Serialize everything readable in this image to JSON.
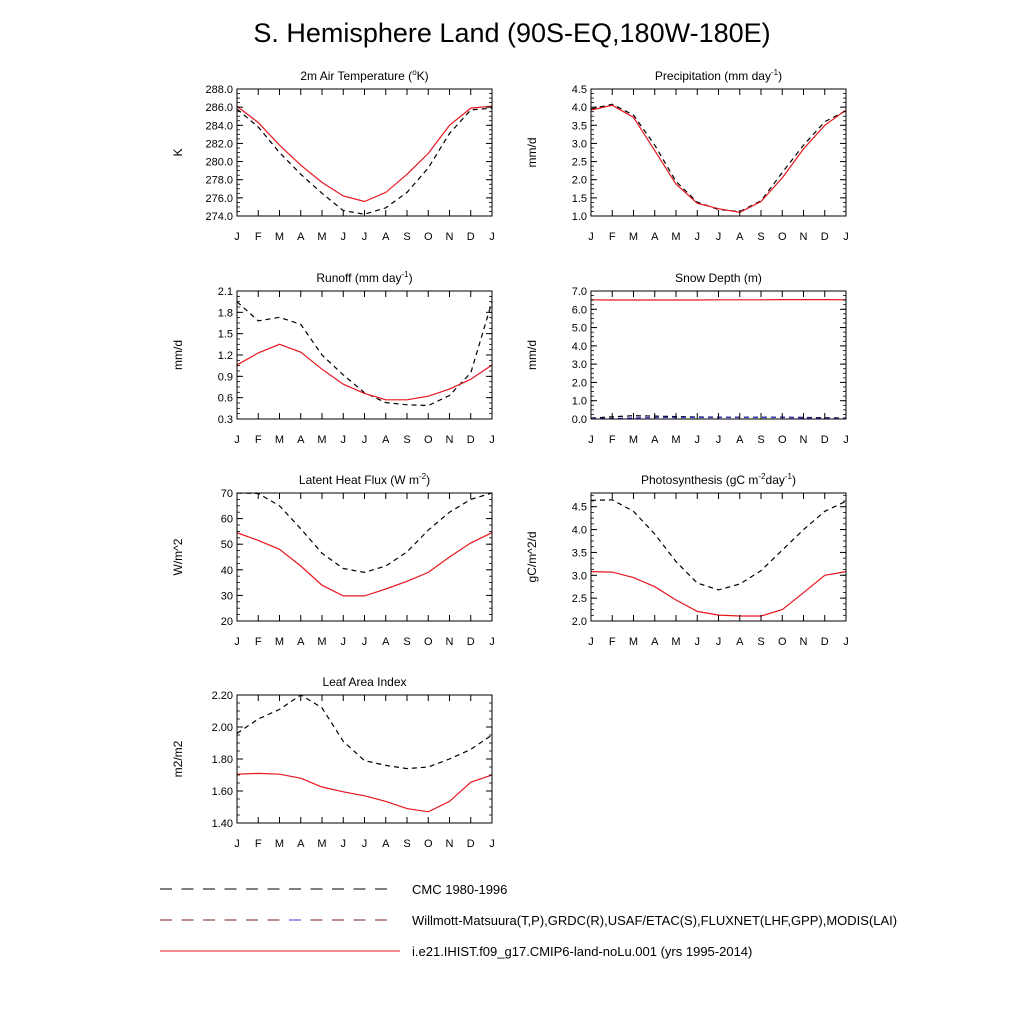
{
  "page_title": "S. Hemisphere Land (90S-EQ,180W-180E)",
  "month_labels": [
    "J",
    "F",
    "M",
    "A",
    "M",
    "J",
    "J",
    "A",
    "S",
    "O",
    "N",
    "D",
    "J"
  ],
  "colors": {
    "obs": "#000000",
    "model": "#e8161d",
    "alt_obs": "#3a3ad8"
  },
  "chart_data": [
    {
      "id": "tsa",
      "type": "line",
      "title_parts": [
        [
          "2m Air Temperature (",
          ""
        ],
        [
          "o",
          "sup"
        ],
        [
          "K)",
          ""
        ]
      ],
      "ylabel": "K",
      "ylim": [
        274,
        288
      ],
      "yticks": [
        274,
        276,
        278,
        280,
        282,
        284,
        286,
        288
      ],
      "ytick_labels": [
        "274.0",
        "276.0",
        "278.0",
        "280.0",
        "282.0",
        "284.0",
        "286.0",
        "288.0"
      ],
      "x": [
        1,
        2,
        3,
        4,
        5,
        6,
        7,
        8,
        9,
        10,
        11,
        12,
        13
      ],
      "series": [
        {
          "role": "obs",
          "style": "dash",
          "values": [
            285.8,
            283.8,
            281.0,
            278.6,
            276.5,
            274.6,
            274.2,
            274.9,
            276.6,
            279.3,
            283.1,
            285.7,
            285.9
          ]
        },
        {
          "role": "model",
          "style": "solid",
          "values": [
            286.1,
            284.3,
            281.8,
            279.6,
            277.7,
            276.2,
            275.6,
            276.6,
            278.6,
            280.9,
            284.0,
            285.9,
            286.1
          ]
        }
      ]
    },
    {
      "id": "prec",
      "type": "line",
      "title_parts": [
        [
          "Precipitation (mm day",
          ""
        ],
        [
          "-1",
          "sup"
        ],
        [
          ")",
          ""
        ]
      ],
      "ylabel": "mm/d",
      "ylim": [
        1.0,
        4.5
      ],
      "yticks": [
        1.0,
        1.5,
        2.0,
        2.5,
        3.0,
        3.5,
        4.0,
        4.5
      ],
      "ytick_labels": [
        "1.0",
        "1.5",
        "2.0",
        "2.5",
        "3.0",
        "3.5",
        "4.0",
        "4.5"
      ],
      "x": [
        1,
        2,
        3,
        4,
        5,
        6,
        7,
        8,
        9,
        10,
        11,
        12,
        13
      ],
      "series": [
        {
          "role": "obs",
          "style": "dash",
          "values": [
            3.95,
            4.08,
            3.78,
            2.95,
            1.95,
            1.38,
            1.18,
            1.12,
            1.42,
            2.2,
            2.95,
            3.6,
            3.9
          ]
        },
        {
          "role": "model",
          "style": "solid",
          "values": [
            3.92,
            4.05,
            3.72,
            2.8,
            1.88,
            1.35,
            1.2,
            1.1,
            1.4,
            2.05,
            2.85,
            3.5,
            3.92
          ]
        }
      ]
    },
    {
      "id": "runoff",
      "type": "line",
      "title_parts": [
        [
          "Runoff (mm day",
          ""
        ],
        [
          "-1",
          "sup"
        ],
        [
          ")",
          ""
        ]
      ],
      "ylabel": "mm/d",
      "ylim": [
        0.3,
        2.1
      ],
      "yticks": [
        0.3,
        0.6,
        0.9,
        1.2,
        1.5,
        1.8,
        2.1
      ],
      "ytick_labels": [
        "0.3",
        "0.6",
        "0.9",
        "1.2",
        "1.5",
        "1.8",
        "2.1"
      ],
      "x": [
        1,
        2,
        3,
        4,
        5,
        6,
        7,
        8,
        9,
        10,
        11,
        12,
        13
      ],
      "series": [
        {
          "role": "obs",
          "style": "dash",
          "values": [
            1.95,
            1.68,
            1.73,
            1.63,
            1.2,
            0.92,
            0.67,
            0.53,
            0.5,
            0.49,
            0.63,
            0.95,
            1.95
          ]
        },
        {
          "role": "model",
          "style": "solid",
          "values": [
            1.06,
            1.23,
            1.35,
            1.24,
            1.0,
            0.79,
            0.66,
            0.57,
            0.57,
            0.62,
            0.72,
            0.86,
            1.06
          ]
        }
      ]
    },
    {
      "id": "snow",
      "type": "line",
      "title_parts": [
        [
          "Snow Depth (m)",
          ""
        ]
      ],
      "ylabel": "mm/d",
      "ylim": [
        0.0,
        7.0
      ],
      "yticks": [
        0,
        1,
        2,
        3,
        4,
        5,
        6,
        7
      ],
      "ytick_labels": [
        "0.0",
        "1.0",
        "2.0",
        "3.0",
        "4.0",
        "5.0",
        "6.0",
        "7.0"
      ],
      "x": [
        1,
        2,
        3,
        4,
        5,
        6,
        7,
        8,
        9,
        10,
        11,
        12,
        13
      ],
      "series": [
        {
          "role": "obs",
          "style": "dash",
          "values": [
            0.05,
            0.12,
            0.18,
            0.16,
            0.13,
            0.11,
            0.1,
            0.1,
            0.1,
            0.1,
            0.09,
            0.07,
            0.05
          ]
        },
        {
          "role": "alt_obs",
          "style": "dash",
          "values": [
            0.02,
            0.03,
            0.06,
            0.08,
            0.08,
            0.08,
            0.08,
            0.08,
            0.08,
            0.08,
            0.06,
            0.04,
            0.02
          ]
        },
        {
          "role": "model",
          "style": "solid",
          "values": [
            6.52,
            6.51,
            6.51,
            6.51,
            6.51,
            6.51,
            6.52,
            6.52,
            6.52,
            6.53,
            6.53,
            6.53,
            6.52
          ]
        }
      ]
    },
    {
      "id": "lhf",
      "type": "line",
      "title_parts": [
        [
          "Latent Heat Flux (W m",
          ""
        ],
        [
          "-2",
          "sup"
        ],
        [
          ")",
          ""
        ]
      ],
      "ylabel": "W/m^2",
      "ylim": [
        20,
        70
      ],
      "yticks": [
        20,
        30,
        40,
        50,
        60,
        70
      ],
      "ytick_labels": [
        "20",
        "30",
        "40",
        "50",
        "60",
        "70"
      ],
      "x": [
        1,
        2,
        3,
        4,
        5,
        6,
        7,
        8,
        9,
        10,
        11,
        12,
        13
      ],
      "series": [
        {
          "role": "obs",
          "style": "dash",
          "values": [
            70,
            69.8,
            65,
            56,
            46.5,
            40.5,
            39,
            41.5,
            47,
            55.5,
            62.5,
            67.5,
            70
          ]
        },
        {
          "role": "model",
          "style": "solid",
          "values": [
            54.5,
            51.5,
            48,
            41.5,
            34,
            29.8,
            29.8,
            32.5,
            35.5,
            39,
            45,
            50.5,
            54.5
          ]
        }
      ]
    },
    {
      "id": "gpp",
      "type": "line",
      "title_parts": [
        [
          "Photosynthesis (gC m",
          ""
        ],
        [
          "-2",
          "sup"
        ],
        [
          "day",
          ""
        ],
        [
          "-1",
          "sup"
        ],
        [
          ")",
          ""
        ]
      ],
      "ylabel": "gC/m^2/d",
      "ylim": [
        2.0,
        4.8
      ],
      "yticks": [
        2.0,
        2.5,
        3.0,
        3.5,
        4.0,
        4.5
      ],
      "ytick_labels": [
        "2.0",
        "2.5",
        "3.0",
        "3.5",
        "4.0",
        "4.5"
      ],
      "x": [
        1,
        2,
        3,
        4,
        5,
        6,
        7,
        8,
        9,
        10,
        11,
        12,
        13
      ],
      "series": [
        {
          "role": "obs",
          "style": "dash",
          "values": [
            4.64,
            4.65,
            4.4,
            3.9,
            3.3,
            2.83,
            2.68,
            2.81,
            3.1,
            3.55,
            4.0,
            4.4,
            4.62
          ]
        },
        {
          "role": "model",
          "style": "solid",
          "values": [
            3.08,
            3.07,
            2.95,
            2.75,
            2.46,
            2.21,
            2.13,
            2.11,
            2.11,
            2.25,
            2.62,
            3.0,
            3.08
          ]
        }
      ]
    },
    {
      "id": "lai",
      "type": "line",
      "title_parts": [
        [
          "Leaf Area Index",
          ""
        ]
      ],
      "ylabel": "m2/m2",
      "ylim": [
        1.4,
        2.2
      ],
      "yticks": [
        1.4,
        1.6,
        1.8,
        2.0,
        2.2
      ],
      "ytick_labels": [
        "1.40",
        "1.60",
        "1.80",
        "2.00",
        "2.20"
      ],
      "x": [
        1,
        2,
        3,
        4,
        5,
        6,
        7,
        8,
        9,
        10,
        11,
        12,
        13
      ],
      "series": [
        {
          "role": "obs",
          "style": "dash",
          "values": [
            1.96,
            2.05,
            2.11,
            2.2,
            2.12,
            1.91,
            1.79,
            1.76,
            1.74,
            1.75,
            1.8,
            1.86,
            1.95
          ]
        },
        {
          "role": "model",
          "style": "solid",
          "values": [
            1.705,
            1.71,
            1.705,
            1.68,
            1.625,
            1.595,
            1.57,
            1.535,
            1.49,
            1.47,
            1.535,
            1.655,
            1.7
          ]
        }
      ]
    }
  ],
  "legend": [
    {
      "label": "CMC 1980-1996",
      "style": "dash",
      "colors": [
        "#000000"
      ]
    },
    {
      "label": "Willmott-Matsuura(T,P),GRDC(R),USAF/ETAC(S),FLUXNET(LHF,GPP),MODIS(LAI)",
      "style": "dash",
      "colors": [
        "#7a1f1f",
        "#7a1f1f",
        "#7a1f1f",
        "#7a1f1f",
        "#7a1f1f",
        "#7a1f1f",
        "#3a3ad8",
        "#7a1f1f",
        "#7a1f1f",
        "#7a1f1f",
        "#7a1f1f"
      ]
    },
    {
      "label": "i.e21.IHIST.f09_g17.CMIP6-land-noLu.001 (yrs 1995-2014)",
      "style": "solid",
      "colors": [
        "#e8161d"
      ]
    }
  ]
}
